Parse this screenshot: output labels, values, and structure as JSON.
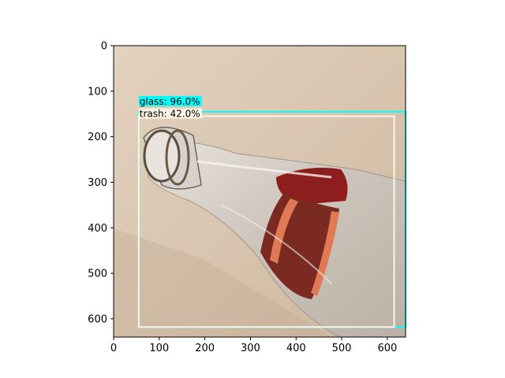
{
  "image": {
    "description_free": true,
    "extent": {
      "x": [
        0,
        640
      ],
      "y": [
        640,
        0
      ]
    }
  },
  "axes": {
    "x_ticks": [
      {
        "value": 0,
        "label": "0"
      },
      {
        "value": 100,
        "label": "100"
      },
      {
        "value": 200,
        "label": "200"
      },
      {
        "value": 300,
        "label": "300"
      },
      {
        "value": 400,
        "label": "400"
      },
      {
        "value": 500,
        "label": "500"
      },
      {
        "value": 600,
        "label": "600"
      }
    ],
    "y_ticks": [
      {
        "value": 0,
        "label": "0"
      },
      {
        "value": 100,
        "label": "100"
      },
      {
        "value": 200,
        "label": "200"
      },
      {
        "value": 300,
        "label": "300"
      },
      {
        "value": 400,
        "label": "400"
      },
      {
        "value": 500,
        "label": "500"
      },
      {
        "value": 600,
        "label": "600"
      }
    ]
  },
  "detections": [
    {
      "label": "glass: 96.0%",
      "color": "#00ffff",
      "box": {
        "x0": 55,
        "y0": 145,
        "x1": 640,
        "y1": 618
      }
    },
    {
      "label": "trash: 42.0%",
      "color": "#fff5e6",
      "box": {
        "x0": 55,
        "y0": 155,
        "x1": 615,
        "y1": 618
      }
    }
  ]
}
